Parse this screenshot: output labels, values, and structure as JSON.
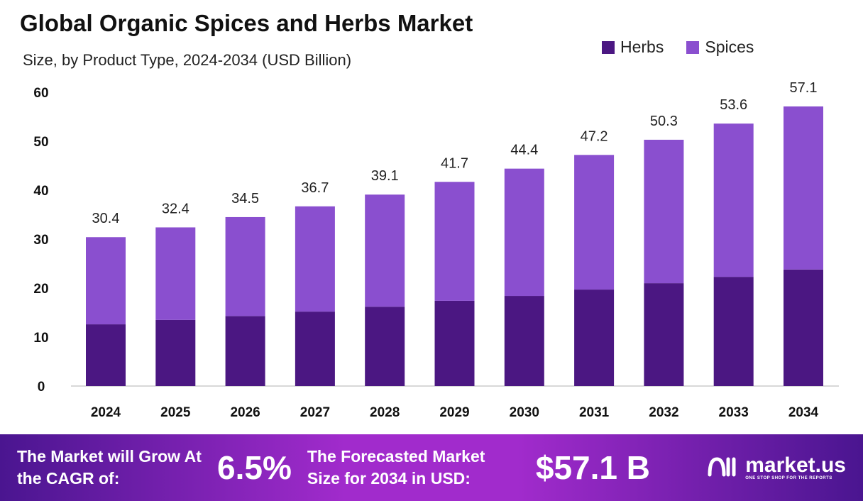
{
  "chart_data": {
    "type": "bar",
    "stacked": true,
    "title": "Global Organic Spices and Herbs Market",
    "subtitle": "Size, by Product Type, 2024-2034 (USD Billion)",
    "categories": [
      "2024",
      "2025",
      "2026",
      "2027",
      "2028",
      "2029",
      "2030",
      "2031",
      "2032",
      "2033",
      "2034"
    ],
    "series": [
      {
        "name": "Herbs",
        "color": "#4b1782",
        "values": [
          12.6,
          13.5,
          14.3,
          15.2,
          16.2,
          17.4,
          18.4,
          19.7,
          21.0,
          22.3,
          23.8
        ]
      },
      {
        "name": "Spices",
        "color": "#8a4fcf",
        "values": [
          17.8,
          18.9,
          20.2,
          21.5,
          22.9,
          24.3,
          26.0,
          27.5,
          29.3,
          31.3,
          33.3
        ]
      }
    ],
    "totals": [
      "30.4",
      "32.4",
      "34.5",
      "36.7",
      "39.1",
      "41.7",
      "44.4",
      "47.2",
      "50.3",
      "53.6",
      "57.1"
    ],
    "yticks": [
      0,
      10,
      20,
      30,
      40,
      50,
      60
    ],
    "ylim": [
      0,
      60
    ],
    "grid": false,
    "legend": "top-right"
  },
  "footer": {
    "cagr_label": "The Market will Grow At the CAGR of:",
    "cagr_value": "6.5%",
    "forecast_label": "The Forecasted Market Size for 2034 in USD:",
    "forecast_value": "$57.1 B",
    "brand": "market.us",
    "brand_tagline": "ONE STOP SHOP FOR THE REPORTS"
  }
}
